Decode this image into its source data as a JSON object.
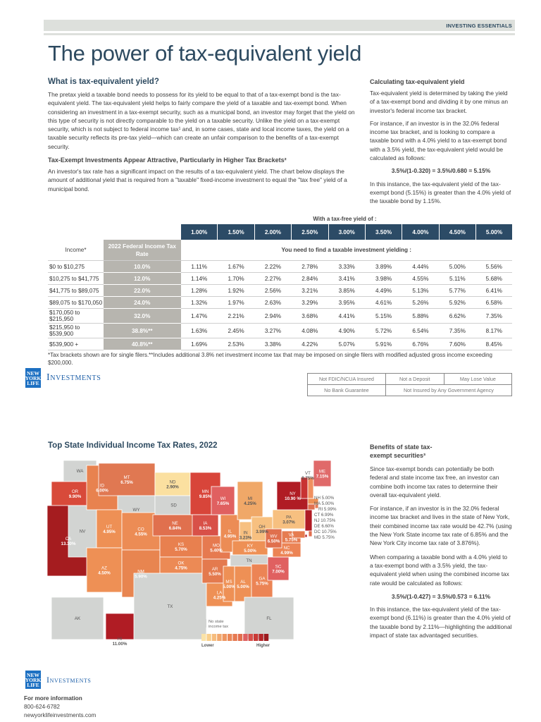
{
  "header": {
    "section": "INVESTING ESSENTIALS",
    "title": "The power of tax-equivalent yield"
  },
  "intro": {
    "heading": "What is tax-equivalent yield?",
    "body": "The pretax yield a taxable bond needs to possess for its yield to be equal to that of a tax-exempt bond is the tax-equivalent yield. The tax-equivalent yield helps to fairly compare the yield of a taxable and tax-exempt bond. When considering an investment in a tax-exempt security, such as a municipal bond, an investor may forget that the yield on this type of security is not directly comparable to the yield on a taxable security. Unlike the yield on a tax-exempt security, which is not subject to federal income tax¹ and, in some cases, state and local income taxes, the yield on a taxable security reflects its pre-tax yield—which can create an unfair comparison to the benefits of a tax-exempt security.",
    "subheading": "Tax-Exempt Investments Appear Attractive, Particularly in Higher Tax Brackets²",
    "body2": "An investor's tax rate has a significant impact on the results of a tax-equivalent yield. The chart below displays the amount of additional yield that is required from a \"taxable\" fixed-income investment to equal the \"tax free\" yield of a municipal bond."
  },
  "calc": {
    "heading": "Calculating tax-equivalent yield",
    "p1": "Tax-equivalent yield is determined by taking the yield of a tax-exempt bond and dividing it by one minus an investor's federal income tax bracket.",
    "p2": "For instance, if an investor is in the 32.0% federal income tax bracket, and is looking to compare a taxable bond with a 4.0% yield to a tax-exempt bond with a 3.5% yield, the tax-equivalent yield would be calculated as follows:",
    "formula": "3.5%/(1-0.320) = 3.5%/0.680 = 5.15%",
    "p3": "In this instance, the tax-equivalent yield of the tax-exempt bond (5.15%) is greater than the 4.0% yield of the taxable bond by 1.15%."
  },
  "table": {
    "caption": "With a tax-free yield of :",
    "yields": [
      "1.00%",
      "1.50%",
      "2.00%",
      "2.50%",
      "3.00%",
      "3.50%",
      "4.00%",
      "4.50%",
      "5.00%"
    ],
    "income_header": "Income*",
    "rate_header": "2022 Federal Income Tax Rate",
    "sub_header": "You need to find a taxable investment yielding :",
    "rows": [
      {
        "income": "$0 to $10,275",
        "rate": "10.0%",
        "values": [
          "1.11%",
          "1.67%",
          "2.22%",
          "2.78%",
          "3.33%",
          "3.89%",
          "4.44%",
          "5.00%",
          "5.56%"
        ]
      },
      {
        "income": "$10,275 to $41,775",
        "rate": "12.0%",
        "values": [
          "1.14%",
          "1.70%",
          "2.27%",
          "2.84%",
          "3.41%",
          "3.98%",
          "4.55%",
          "5.11%",
          "5.68%"
        ]
      },
      {
        "income": "$41,775 to $89,075",
        "rate": "22.0%",
        "values": [
          "1.28%",
          "1.92%",
          "2.56%",
          "3.21%",
          "3.85%",
          "4.49%",
          "5.13%",
          "5.77%",
          "6.41%"
        ]
      },
      {
        "income": "$89,075 to $170,050",
        "rate": "24.0%",
        "values": [
          "1.32%",
          "1.97%",
          "2.63%",
          "3.29%",
          "3.95%",
          "4.61%",
          "5.26%",
          "5.92%",
          "6.58%"
        ]
      },
      {
        "income": "$170,050 to $215,950",
        "rate": "32.0%",
        "values": [
          "1.47%",
          "2.21%",
          "2.94%",
          "3.68%",
          "4.41%",
          "5.15%",
          "5.88%",
          "6.62%",
          "7.35%"
        ]
      },
      {
        "income": "$215,950 to $539,900",
        "rate": "38.8%**",
        "values": [
          "1.63%",
          "2.45%",
          "3.27%",
          "4.08%",
          "4.90%",
          "5.72%",
          "6.54%",
          "7.35%",
          "8.17%"
        ]
      },
      {
        "income": "$539,900 +",
        "rate": "40.8%**",
        "values": [
          "1.69%",
          "2.53%",
          "3.38%",
          "4.22%",
          "5.07%",
          "5.91%",
          "6.76%",
          "7.60%",
          "8.45%"
        ]
      }
    ],
    "footnote": "*Tax brackets shown are for single filers.**Includes additional 3.8% net investment income tax that may be imposed on single filers with modified adjusted gross income exceeding $200,000."
  },
  "brand": {
    "logo_text": "NEW YORK LIFE",
    "name": "Investments"
  },
  "disclosures": [
    [
      "Not FDIC/NCUA Insured",
      "Not a Deposit",
      "May Lose Value"
    ],
    [
      "No Bank Guarantee",
      "Not Insured by Any Government Agency"
    ]
  ],
  "map": {
    "title": "Top State Individual Income Tax Rates, 2022",
    "legend": {
      "none": "No state income tax",
      "lower": "Lower",
      "higher": "Higher",
      "no_tax_color": "#d2d4d2",
      "scale": [
        "#fbe3a8",
        "#f9cf8c",
        "#f6bd7e",
        "#f2a86e",
        "#ee9660",
        "#ea8758",
        "#e67a52",
        "#e26e4e",
        "#de6060",
        "#d8504a",
        "#c93a36",
        "#b52528",
        "#9c1a1e"
      ]
    },
    "states": [
      {
        "abbr": "WA",
        "rate": "",
        "color": "#d2d4d2"
      },
      {
        "abbr": "OR",
        "rate": "9.90%",
        "color": "#d84a3a"
      },
      {
        "abbr": "CA",
        "rate": "13.30%",
        "color": "#a51c1f"
      },
      {
        "abbr": "NV",
        "rate": "",
        "color": "#d2d4d2"
      },
      {
        "abbr": "ID",
        "rate": "6.00%",
        "color": "#e8824f"
      },
      {
        "abbr": "MT",
        "rate": "6.75%",
        "color": "#e07852"
      },
      {
        "abbr": "WY",
        "rate": "",
        "color": "#d2d4d2"
      },
      {
        "abbr": "UT",
        "rate": "4.95%",
        "color": "#ee9055"
      },
      {
        "abbr": "CO",
        "rate": "4.55%",
        "color": "#ec8c55"
      },
      {
        "abbr": "AZ",
        "rate": "4.50%",
        "color": "#ee9055"
      },
      {
        "abbr": "NM",
        "rate": "5.90%",
        "color": "#e88550"
      },
      {
        "abbr": "ND",
        "rate": "2.90%",
        "color": "#fbe0a0"
      },
      {
        "abbr": "SD",
        "rate": "",
        "color": "#d2d4d2"
      },
      {
        "abbr": "NE",
        "rate": "6.84%",
        "color": "#e0704e"
      },
      {
        "abbr": "KS",
        "rate": "5.70%",
        "color": "#e8804f"
      },
      {
        "abbr": "OK",
        "rate": "4.75%",
        "color": "#ec8a55"
      },
      {
        "abbr": "TX",
        "rate": "",
        "color": "#d2d4d2"
      },
      {
        "abbr": "MN",
        "rate": "9.85%",
        "color": "#d8453a"
      },
      {
        "abbr": "IA",
        "rate": "8.53%",
        "color": "#d85048"
      },
      {
        "abbr": "MO",
        "rate": "5.40%",
        "color": "#e67a50"
      },
      {
        "abbr": "AR",
        "rate": "5.50%",
        "color": "#e47a4e"
      },
      {
        "abbr": "LA",
        "rate": "4.25%",
        "color": "#ee9055"
      },
      {
        "abbr": "WI",
        "rate": "7.65%",
        "color": "#e06060"
      },
      {
        "abbr": "IL",
        "rate": "4.95%",
        "color": "#ec8c55"
      },
      {
        "abbr": "MI",
        "rate": "4.25%",
        "color": "#f0a868"
      },
      {
        "abbr": "IN",
        "rate": "3.23%",
        "color": "#f7c080"
      },
      {
        "abbr": "OH",
        "rate": "3.99%",
        "color": "#f7c080"
      },
      {
        "abbr": "KY",
        "rate": "5.00%",
        "color": "#ee9055"
      },
      {
        "abbr": "TN",
        "rate": "",
        "color": "#d2d4d2"
      },
      {
        "abbr": "MS",
        "rate": "5.00%",
        "color": "#ee9055"
      },
      {
        "abbr": "AL",
        "rate": "5.00%",
        "color": "#ee9055"
      },
      {
        "abbr": "GA",
        "rate": "5.75%",
        "color": "#ec8455"
      },
      {
        "abbr": "FL",
        "rate": "",
        "color": "#d2d4d2"
      },
      {
        "abbr": "SC",
        "rate": "7.00%",
        "color": "#e06060"
      },
      {
        "abbr": "NC",
        "rate": "4.99%",
        "color": "#ec8455"
      },
      {
        "abbr": "VA",
        "rate": "5.75%",
        "color": "#e67c50"
      },
      {
        "abbr": "WV",
        "rate": "6.50%",
        "color": "#e0704e"
      },
      {
        "abbr": "PA",
        "rate": "3.07%",
        "color": "#f7c080"
      },
      {
        "abbr": "NY",
        "rate": "10.90 %",
        "color": "#b01c24"
      },
      {
        "abbr": "NJ",
        "rate": "10.75%",
        "color": "#b01c24"
      },
      {
        "abbr": "VT",
        "rate": "8.75%",
        "color": "#c83232"
      },
      {
        "abbr": "NH",
        "rate": "5.00%",
        "color": "#f09060"
      },
      {
        "abbr": "ME",
        "rate": "7.15%",
        "color": "#e06a6a"
      },
      {
        "abbr": "MA",
        "rate": "5.00%",
        "color": "#ee9055"
      },
      {
        "abbr": "RI",
        "rate": "5.99%",
        "color": "#e67c55"
      },
      {
        "abbr": "CT",
        "rate": "6.99%",
        "color": "#e07050"
      },
      {
        "abbr": "DE",
        "rate": "6.60%",
        "color": "#e07050"
      },
      {
        "abbr": "DC",
        "rate": "10.75%",
        "color": "#b01c24"
      },
      {
        "abbr": "MD",
        "rate": "5.75%",
        "color": "#e67c50"
      },
      {
        "abbr": "AK",
        "rate": "",
        "color": "#d2d4d2"
      },
      {
        "abbr": "HI",
        "rate": "11.00%",
        "color": "#b01c24"
      }
    ]
  },
  "benefits": {
    "heading": "Benefits of state tax-exempt securities³",
    "p1": "Since tax-exempt bonds can potentially be both federal and state income tax free, an investor can combine both income tax rates to determine their overall tax-equivalent yield.",
    "p2": "For instance, if an investor is in the 32.0% federal income tax bracket and lives in the state of New York, their combined income tax rate would be 42.7% (using the New York State income tax rate of 6.85% and the New York City income tax rate of 3.876%).",
    "p3": "When comparing a taxable bond with a 4.0% yield to a tax-exempt bond with a 3.5% yield, the tax-equivalent yield when using the combined income tax rate would be calculated as follows:",
    "formula": "3.5%/(1-0.427) = 3.5%/0.573 = 6.11%",
    "p4": "In this instance, the tax-equivalent yield of the tax-exempt bond (6.11%) is greater than the 4.0% yield of the taxable bond by 2.11%—highlighting the additional impact of state tax advantaged securities."
  },
  "footer": {
    "heading": "For more information",
    "phone": "800-624-6782",
    "website": "newyorklifeinvestments.com"
  }
}
